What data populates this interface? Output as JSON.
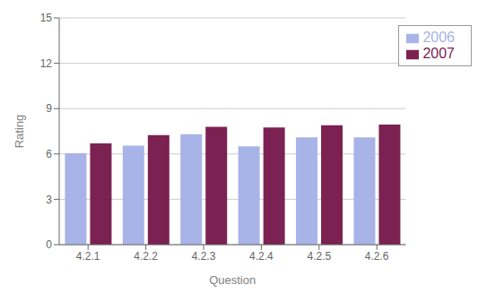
{
  "chart_data": {
    "type": "bar",
    "categories": [
      "4.2.1",
      "4.2.2",
      "4.2.3",
      "4.2.4",
      "4.2.5",
      "4.2.6"
    ],
    "series": [
      {
        "name": "2006",
        "color": "#a8b4e8",
        "values": [
          6.05,
          6.55,
          7.3,
          6.5,
          7.1,
          7.1
        ]
      },
      {
        "name": "2007",
        "color": "#7b2252",
        "values": [
          6.7,
          7.25,
          7.8,
          7.75,
          7.9,
          7.95
        ]
      }
    ],
    "xlabel": "Question",
    "ylabel": "Rating",
    "ylim": [
      0,
      15
    ],
    "yticks": [
      0,
      3,
      6,
      9,
      12,
      15
    ],
    "grid": true,
    "legend": "upper right"
  }
}
